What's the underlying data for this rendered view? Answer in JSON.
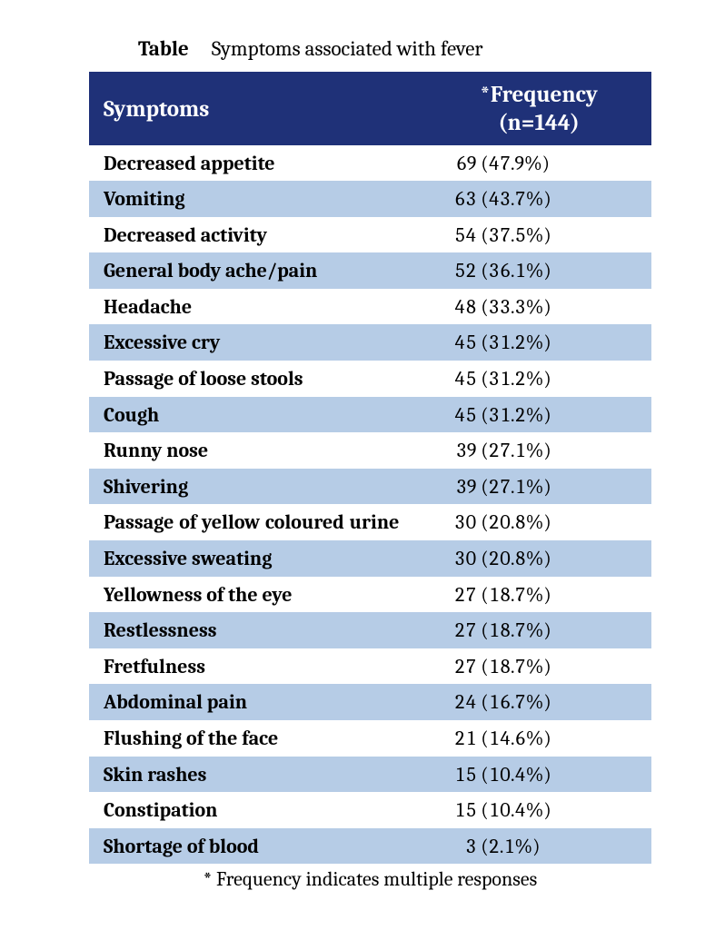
{
  "caption": {
    "label": "Table",
    "text": "Symptoms associated with fever"
  },
  "header": {
    "symptom": "Symptoms",
    "frequency_line1": "*Frequency",
    "frequency_line2": "(n=144)"
  },
  "colors": {
    "header_bg": "#1f3178",
    "header_text": "#ffffff",
    "row_odd": "#ffffff",
    "row_even": "#b6cce6"
  },
  "rows": [
    {
      "symptom": "Decreased appetite",
      "count": "69",
      "pct": "(47.9%)"
    },
    {
      "symptom": "Vomiting",
      "count": "63",
      "pct": "(43.7%)"
    },
    {
      "symptom": "Decreased activity",
      "count": "54",
      "pct": "(37.5%)"
    },
    {
      "symptom": "General body ache/pain",
      "count": "52",
      "pct": "(36.1%)"
    },
    {
      "symptom": "Headache",
      "count": "48",
      "pct": "(33.3%)"
    },
    {
      "symptom": "Excessive cry",
      "count": "45",
      "pct": "(31.2%)"
    },
    {
      "symptom": "Passage of loose stools",
      "count": "45",
      "pct": "(31.2%)"
    },
    {
      "symptom": "Cough",
      "count": "45",
      "pct": "(31.2%)"
    },
    {
      "symptom": "Runny nose",
      "count": "39",
      "pct": "(27.1%)"
    },
    {
      "symptom": "Shivering",
      "count": "39",
      "pct": "(27.1%)"
    },
    {
      "symptom": "Passage of yellow coloured urine",
      "count": "30",
      "pct": "(20.8%)",
      "justify": true
    },
    {
      "symptom": "Excessive sweating",
      "count": "30",
      "pct": "(20.8%)"
    },
    {
      "symptom": "Yellowness of the eye",
      "count": "27",
      "pct": "(18.7%)"
    },
    {
      "symptom": "Restlessness",
      "count": "27",
      "pct": "(18.7%)"
    },
    {
      "symptom": "Fretfulness",
      "count": "27",
      "pct": "(18.7%)"
    },
    {
      "symptom": "Abdominal pain",
      "count": "24",
      "pct": "(16.7%)"
    },
    {
      "symptom": "Flushing of the face",
      "count": "21",
      "pct": "(14.6%)"
    },
    {
      "symptom": "Skin rashes",
      "count": "15",
      "pct": "(10.4%)"
    },
    {
      "symptom": "Constipation",
      "count": "15",
      "pct": "(10.4%)"
    },
    {
      "symptom": "Shortage of blood",
      "count": "3",
      "pct": "(2.1%)"
    }
  ],
  "footnote": "* Frequency indicates multiple responses"
}
